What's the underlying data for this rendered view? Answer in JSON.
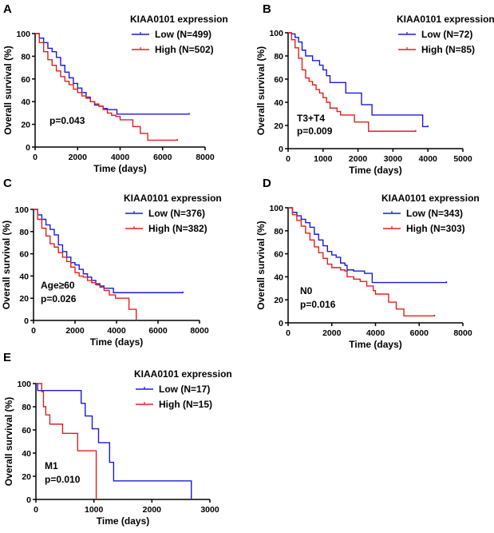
{
  "chart_data": [
    {
      "type": "line",
      "panel": "A",
      "xlabel": "Time (days)",
      "ylabel": "Overall survival (%)",
      "xlim": [
        0,
        8000
      ],
      "ylim": [
        0,
        100
      ],
      "xticks": [
        0,
        2000,
        4000,
        6000,
        8000
      ],
      "yticks": [
        0,
        20,
        40,
        60,
        80,
        100
      ],
      "legend_title": "KIAA0101 expression",
      "legend_position": "top-right",
      "annotations": [
        "p=0.043"
      ],
      "series": [
        {
          "name": "Low (N=499)",
          "color": "#1a1adb",
          "points": [
            [
              0,
              100
            ],
            [
              200,
              96
            ],
            [
              400,
              92
            ],
            [
              600,
              87
            ],
            [
              800,
              84
            ],
            [
              1000,
              79
            ],
            [
              1200,
              72
            ],
            [
              1400,
              66
            ],
            [
              1600,
              61
            ],
            [
              1800,
              56
            ],
            [
              2000,
              52
            ],
            [
              2200,
              48
            ],
            [
              2400,
              44
            ],
            [
              2600,
              40
            ],
            [
              2800,
              37
            ],
            [
              3000,
              36
            ],
            [
              3200,
              34
            ],
            [
              3400,
              33
            ],
            [
              3850,
              29
            ],
            [
              7250,
              29
            ],
            [
              7250,
              30
            ]
          ]
        },
        {
          "name": "High (N=502)",
          "color": "#e0201e",
          "points": [
            [
              0,
              100
            ],
            [
              200,
              92
            ],
            [
              400,
              84
            ],
            [
              600,
              77
            ],
            [
              800,
              72
            ],
            [
              1000,
              67
            ],
            [
              1200,
              62
            ],
            [
              1400,
              58
            ],
            [
              1600,
              55
            ],
            [
              1800,
              51
            ],
            [
              2000,
              48
            ],
            [
              2200,
              45
            ],
            [
              2400,
              43
            ],
            [
              2600,
              40
            ],
            [
              2800,
              38
            ],
            [
              3000,
              36
            ],
            [
              3200,
              33
            ],
            [
              3400,
              30
            ],
            [
              3600,
              28
            ],
            [
              3800,
              27
            ],
            [
              4000,
              24
            ],
            [
              4600,
              18
            ],
            [
              4950,
              12
            ],
            [
              5300,
              6
            ],
            [
              6700,
              6
            ],
            [
              6700,
              7
            ]
          ]
        }
      ]
    },
    {
      "type": "line",
      "panel": "B",
      "xlabel": "Time (days)",
      "ylabel": "Overall survival (%)",
      "xlim": [
        0,
        5000
      ],
      "ylim": [
        0,
        100
      ],
      "xticks": [
        0,
        1000,
        2000,
        3000,
        4000,
        5000
      ],
      "yticks": [
        0,
        20,
        40,
        60,
        80,
        100
      ],
      "legend_title": "KIAA0101 expression",
      "legend_position": "top-right",
      "annotations": [
        "T3+T4",
        "p=0.009"
      ],
      "series": [
        {
          "name": "Low (N=72)",
          "color": "#1a1adb",
          "points": [
            [
              0,
              100
            ],
            [
              100,
              99
            ],
            [
              200,
              96
            ],
            [
              300,
              92
            ],
            [
              400,
              85
            ],
            [
              500,
              80
            ],
            [
              700,
              76
            ],
            [
              900,
              72
            ],
            [
              1000,
              68
            ],
            [
              1100,
              63
            ],
            [
              1200,
              57
            ],
            [
              1650,
              48
            ],
            [
              2100,
              38
            ],
            [
              2400,
              29
            ],
            [
              3850,
              19
            ],
            [
              4000,
              19
            ],
            [
              4000,
              20
            ]
          ]
        },
        {
          "name": "High (N=85)",
          "color": "#e0201e",
          "points": [
            [
              0,
              100
            ],
            [
              100,
              94
            ],
            [
              200,
              87
            ],
            [
              300,
              78
            ],
            [
              400,
              68
            ],
            [
              500,
              61
            ],
            [
              600,
              58
            ],
            [
              700,
              55
            ],
            [
              800,
              51
            ],
            [
              900,
              48
            ],
            [
              1000,
              44
            ],
            [
              1100,
              40
            ],
            [
              1200,
              35
            ],
            [
              1400,
              32
            ],
            [
              1500,
              29
            ],
            [
              1900,
              23
            ],
            [
              2300,
              15
            ],
            [
              3650,
              15
            ],
            [
              3650,
              16
            ]
          ]
        }
      ]
    },
    {
      "type": "line",
      "panel": "C",
      "xlabel": "Time (days)",
      "ylabel": "Overall survival (%)",
      "xlim": [
        0,
        8000
      ],
      "ylim": [
        0,
        100
      ],
      "xticks": [
        0,
        2000,
        4000,
        6000,
        8000
      ],
      "yticks": [
        0,
        20,
        40,
        60,
        80,
        100
      ],
      "legend_title": "KIAA0101 expression",
      "legend_position": "top-right",
      "annotations": [
        "Age≥60",
        "p=0.026"
      ],
      "series": [
        {
          "name": "Low (N=376)",
          "color": "#1a1adb",
          "points": [
            [
              0,
              100
            ],
            [
              200,
              95
            ],
            [
              400,
              91
            ],
            [
              600,
              86
            ],
            [
              800,
              82
            ],
            [
              1000,
              77
            ],
            [
              1200,
              68
            ],
            [
              1400,
              62
            ],
            [
              1600,
              57
            ],
            [
              1800,
              52
            ],
            [
              2000,
              50
            ],
            [
              2200,
              46
            ],
            [
              2400,
              42
            ],
            [
              2600,
              39
            ],
            [
              2800,
              36
            ],
            [
              3000,
              33
            ],
            [
              3200,
              31
            ],
            [
              3400,
              29
            ],
            [
              3850,
              25
            ],
            [
              7200,
              25
            ],
            [
              7200,
              26
            ]
          ]
        },
        {
          "name": "High (N=382)",
          "color": "#e0201e",
          "points": [
            [
              0,
              100
            ],
            [
              200,
              91
            ],
            [
              400,
              83
            ],
            [
              600,
              76
            ],
            [
              800,
              69
            ],
            [
              1000,
              66
            ],
            [
              1200,
              61
            ],
            [
              1400,
              57
            ],
            [
              1600,
              53
            ],
            [
              1800,
              48
            ],
            [
              2000,
              43
            ],
            [
              2200,
              40
            ],
            [
              2400,
              39
            ],
            [
              2600,
              36
            ],
            [
              2800,
              34
            ],
            [
              3000,
              32
            ],
            [
              3200,
              30
            ],
            [
              3400,
              27
            ],
            [
              3650,
              23
            ],
            [
              3950,
              20
            ],
            [
              4600,
              10
            ],
            [
              4950,
              0
            ]
          ]
        }
      ]
    },
    {
      "type": "line",
      "panel": "D",
      "xlabel": "Time (days)",
      "ylabel": "Overall survival (%)",
      "xlim": [
        0,
        8000
      ],
      "ylim": [
        0,
        100
      ],
      "xticks": [
        0,
        2000,
        4000,
        6000,
        8000
      ],
      "yticks": [
        0,
        20,
        40,
        60,
        80,
        100
      ],
      "legend_title": "KIAA0101 expression",
      "legend_position": "top-right",
      "annotations": [
        "N0",
        "p=0.016"
      ],
      "series": [
        {
          "name": "Low (N=343)",
          "color": "#1a1adb",
          "points": [
            [
              0,
              100
            ],
            [
              200,
              96
            ],
            [
              400,
              93
            ],
            [
              600,
              90
            ],
            [
              800,
              87
            ],
            [
              1000,
              83
            ],
            [
              1200,
              77
            ],
            [
              1400,
              72
            ],
            [
              1600,
              67
            ],
            [
              1800,
              62
            ],
            [
              2000,
              59
            ],
            [
              2200,
              57
            ],
            [
              2400,
              52
            ],
            [
              2600,
              50
            ],
            [
              2700,
              46
            ],
            [
              3000,
              45
            ],
            [
              3500,
              43
            ],
            [
              3850,
              35
            ],
            [
              7250,
              35
            ],
            [
              7250,
              36
            ]
          ]
        },
        {
          "name": "High (N=303)",
          "color": "#e0201e",
          "points": [
            [
              0,
              100
            ],
            [
              200,
              94
            ],
            [
              400,
              89
            ],
            [
              600,
              84
            ],
            [
              800,
              78
            ],
            [
              1000,
              72
            ],
            [
              1200,
              66
            ],
            [
              1400,
              61
            ],
            [
              1600,
              56
            ],
            [
              1800,
              51
            ],
            [
              2000,
              48
            ],
            [
              2400,
              46
            ],
            [
              2600,
              45
            ],
            [
              2700,
              40
            ],
            [
              3000,
              38
            ],
            [
              3300,
              36
            ],
            [
              3600,
              32
            ],
            [
              3900,
              28
            ],
            [
              4000,
              25
            ],
            [
              4600,
              18
            ],
            [
              4950,
              12
            ],
            [
              5300,
              6
            ],
            [
              6700,
              6
            ],
            [
              6700,
              7
            ]
          ]
        }
      ]
    },
    {
      "type": "line",
      "panel": "E",
      "xlabel": "Time (days)",
      "ylabel": "Overall survival (%)",
      "xlim": [
        0,
        3000
      ],
      "ylim": [
        0,
        100
      ],
      "xticks": [
        0,
        1000,
        2000,
        3000
      ],
      "yticks": [
        0,
        20,
        40,
        60,
        80,
        100
      ],
      "legend_title": "KIAA0101 expression",
      "legend_position": "top-right",
      "annotations": [
        "M1",
        "p=0.010"
      ],
      "series": [
        {
          "name": "Low (N=17)",
          "color": "#1a1adb",
          "points": [
            [
              0,
              100
            ],
            [
              30,
              94
            ],
            [
              780,
              83
            ],
            [
              850,
              72
            ],
            [
              970,
              61
            ],
            [
              1080,
              49
            ],
            [
              1270,
              32
            ],
            [
              1340,
              16
            ],
            [
              2680,
              0
            ]
          ]
        },
        {
          "name": "High (N=15)",
          "color": "#e0201e",
          "points": [
            [
              0,
              100
            ],
            [
              100,
              93
            ],
            [
              130,
              80
            ],
            [
              170,
              73
            ],
            [
              240,
              65
            ],
            [
              460,
              57
            ],
            [
              720,
              42
            ],
            [
              1040,
              0
            ]
          ]
        }
      ]
    }
  ]
}
